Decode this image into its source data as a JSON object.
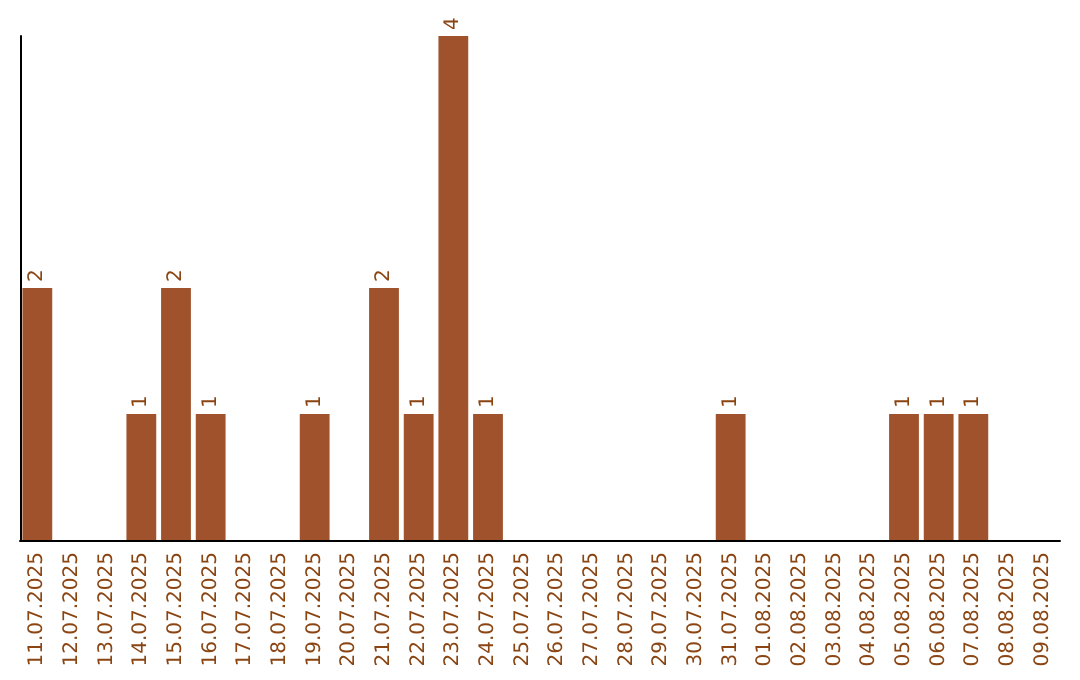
{
  "chart_data": {
    "type": "bar",
    "categories": [
      "11.07.2025",
      "12.07.2025",
      "13.07.2025",
      "14.07.2025",
      "15.07.2025",
      "16.07.2025",
      "17.07.2025",
      "18.07.2025",
      "19.07.2025",
      "20.07.2025",
      "21.07.2025",
      "22.07.2025",
      "23.07.2025",
      "24.07.2025",
      "25.07.2025",
      "26.07.2025",
      "27.07.2025",
      "28.07.2025",
      "29.07.2025",
      "30.07.2025",
      "31.07.2025",
      "01.08.2025",
      "02.08.2025",
      "03.08.2025",
      "04.08.2025",
      "05.08.2025",
      "06.08.2025",
      "07.08.2025",
      "08.08.2025",
      "09.08.2025"
    ],
    "values": [
      2,
      0,
      0,
      1,
      2,
      1,
      0,
      0,
      1,
      0,
      2,
      1,
      4,
      1,
      0,
      0,
      0,
      0,
      0,
      0,
      1,
      0,
      0,
      0,
      0,
      1,
      1,
      1,
      0,
      0
    ],
    "value_labels": [
      "2",
      null,
      null,
      "1",
      "2",
      "1",
      null,
      null,
      "1",
      null,
      "2",
      "1",
      "4",
      "1",
      null,
      null,
      null,
      null,
      null,
      null,
      "1",
      null,
      null,
      null,
      null,
      "1",
      "1",
      "1",
      null,
      null
    ],
    "color": "#a0522d",
    "tick_labels": "x"
  }
}
